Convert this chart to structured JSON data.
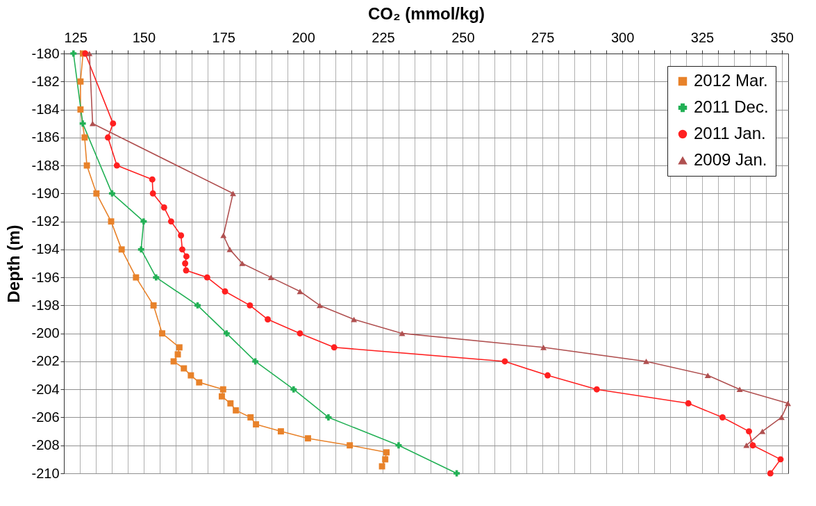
{
  "chart_data": {
    "type": "line",
    "xlabel": "CO₂ (mmol/kg)",
    "ylabel": "Depth (m)",
    "xlim": [
      125,
      352
    ],
    "ylim": [
      -210,
      -180
    ],
    "xticks": [
      125,
      {
        "value": 130,
        "label": null
      },
      {
        "value": 135,
        "label": null
      },
      {
        "value": 140,
        "label": null
      },
      {
        "value": 145,
        "label": null
      },
      150,
      {
        "value": 155,
        "label": null
      },
      {
        "value": 160,
        "label": null
      },
      {
        "value": 165,
        "label": null
      },
      {
        "value": 170,
        "label": null
      },
      175,
      {
        "value": 180,
        "label": null
      },
      {
        "value": 185,
        "label": null
      },
      {
        "value": 190,
        "label": null
      },
      {
        "value": 195,
        "label": null
      },
      200,
      {
        "value": 205,
        "label": null
      },
      {
        "value": 210,
        "label": null
      },
      {
        "value": 215,
        "label": null
      },
      {
        "value": 220,
        "label": null
      },
      225,
      {
        "value": 230,
        "label": null
      },
      {
        "value": 235,
        "label": null
      },
      {
        "value": 240,
        "label": null
      },
      {
        "value": 245,
        "label": null
      },
      250,
      {
        "value": 255,
        "label": null
      },
      {
        "value": 260,
        "label": null
      },
      {
        "value": 265,
        "label": null
      },
      {
        "value": 270,
        "label": null
      },
      275,
      {
        "value": 280,
        "label": null
      },
      {
        "value": 285,
        "label": null
      },
      {
        "value": 290,
        "label": null
      },
      {
        "value": 295,
        "label": null
      },
      300,
      {
        "value": 305,
        "label": null
      },
      {
        "value": 310,
        "label": null
      },
      {
        "value": 315,
        "label": null
      },
      {
        "value": 320,
        "label": null
      },
      325,
      {
        "value": 330,
        "label": null
      },
      {
        "value": 335,
        "label": null
      },
      {
        "value": 340,
        "label": null
      },
      {
        "value": 345,
        "label": null
      },
      350
    ],
    "yticks": [
      -180,
      -182,
      -184,
      -186,
      -188,
      -190,
      -192,
      -194,
      -196,
      -198,
      -200,
      -202,
      -204,
      -206,
      -208,
      -210
    ],
    "grid": true,
    "legend": "top right",
    "series": [
      {
        "name": "2012 Mar.",
        "color": "#e8822a",
        "marker": "square",
        "x": [
          131,
          130.2,
          130.2,
          131.5,
          132.2,
          135.2,
          139.8,
          143.1,
          147.6,
          153.1,
          155.8,
          161.2,
          160.7,
          159.4,
          162.6,
          164.8,
          167.4,
          174.9,
          174.5,
          177.2,
          178.9,
          183.5,
          185.2,
          193,
          201.5,
          214.6,
          226.1,
          225.7,
          224.7
        ],
        "values": [
          -180,
          -182,
          -184,
          -186,
          -188,
          -190,
          -192,
          -194,
          -196,
          -198,
          -200,
          -201,
          -201.5,
          -202,
          -202.5,
          -203,
          -203.5,
          -204,
          -204.5,
          -205,
          -205.5,
          -206,
          -206.5,
          -207,
          -207.5,
          -208,
          -208.5,
          -209,
          -209.5
        ]
      },
      {
        "name": "2011 Dec.",
        "color": "#22b055",
        "marker": "cross",
        "x": [
          128,
          130.9,
          140.1,
          150,
          149.2,
          153.9,
          166.9,
          176,
          185,
          197,
          207.9,
          229.9,
          248.1
        ],
        "values": [
          -180,
          -185,
          -190,
          -192,
          -194,
          -196,
          -198,
          -200,
          -202,
          -204,
          -206,
          -208,
          -210
        ]
      },
      {
        "name": "2011 Jan.",
        "color": "#ff2020",
        "marker": "circle",
        "x": [
          131.7,
          140.4,
          138.8,
          141.6,
          152.7,
          152.9,
          156.4,
          158.6,
          161.7,
          162.1,
          163.4,
          163,
          163.3,
          169.9,
          175.5,
          183.3,
          188.9,
          199,
          209.7,
          263.2,
          276.6,
          292,
          320.7,
          331.4,
          339.7,
          340.9,
          349.6,
          346.4
        ],
        "values": [
          -180,
          -185,
          -186,
          -188,
          -189,
          -190,
          -191,
          -192,
          -193,
          -194,
          -194.5,
          -195,
          -195.5,
          -196,
          -197,
          -198,
          -199,
          -200,
          -201,
          -202,
          -203,
          -204,
          -205,
          -206,
          -207,
          -208,
          -209,
          -210
        ]
      },
      {
        "name": "2009 Jan.",
        "color": "#b05050",
        "marker": "triangle",
        "x": [
          133,
          134,
          178,
          175,
          177,
          180.9,
          189.9,
          199,
          205.2,
          215.9,
          231,
          275.3,
          307.5,
          326.8,
          336.8,
          351.9,
          349.9,
          343.9,
          338.9
        ],
        "values": [
          -180,
          -185,
          -190,
          -193,
          -194,
          -195,
          -196,
          -197,
          -198,
          -199,
          -200,
          -201,
          -202,
          -203,
          -204,
          -205,
          -206,
          -207,
          -208
        ]
      }
    ]
  }
}
